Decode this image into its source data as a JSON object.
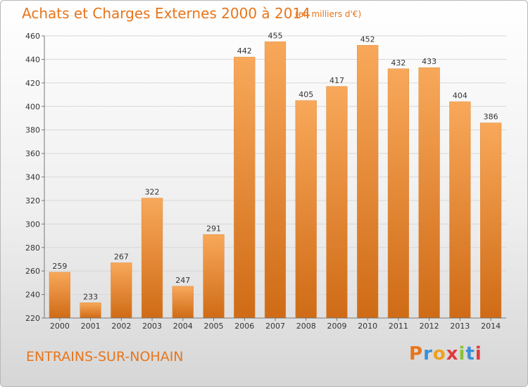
{
  "header": {
    "title": "Achats et Charges Externes 2000 à 2014",
    "subtitle": "(en milliers d'€)"
  },
  "footer": {
    "place": "ENTRAINS-SUR-NOHAIN",
    "logo": "Proxiti"
  },
  "colors": {
    "accent": "#e8751a",
    "bar_light": "#f8a85a",
    "bar_dark": "#cf6b16",
    "logo_letters": [
      "#e8751a",
      "#3a8fd8",
      "#f0a020",
      "#e03a3a",
      "#8ac234",
      "#3a8fd8",
      "#e03a3a"
    ]
  },
  "chart_data": {
    "type": "bar",
    "title": "Achats et Charges Externes 2000 à 2014",
    "subtitle": "(en milliers d'€)",
    "xlabel": "",
    "ylabel": "",
    "categories": [
      "2000",
      "2001",
      "2002",
      "2003",
      "2004",
      "2005",
      "2006",
      "2007",
      "2008",
      "2009",
      "2010",
      "2011",
      "2012",
      "2013",
      "2014"
    ],
    "values": [
      259,
      233,
      267,
      322,
      247,
      291,
      442,
      455,
      405,
      417,
      452,
      432,
      433,
      404,
      386
    ],
    "ylim": [
      220,
      460
    ],
    "yticks": [
      220,
      240,
      260,
      280,
      300,
      320,
      340,
      360,
      380,
      400,
      420,
      440,
      460
    ],
    "grid": true,
    "data_labels": true
  }
}
